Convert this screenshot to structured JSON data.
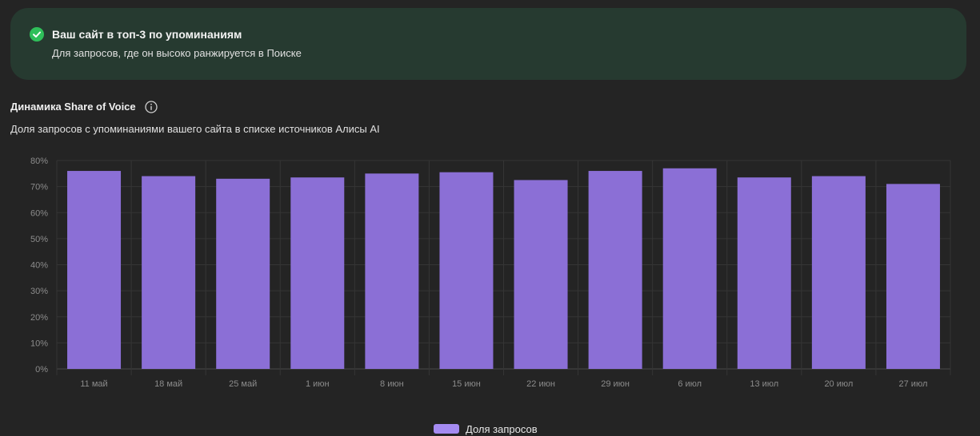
{
  "banner": {
    "title": "Ваш сайт в топ-3 по упоминаниям",
    "subtitle": "Для запросов, где он высоко ранжируется в Поиске",
    "icon": "check-circle-icon",
    "accent_color": "#2fbf5a"
  },
  "section": {
    "title": "Динамика Share of Voice",
    "subtitle": "Доля запросов с упоминаниями вашего сайта в списке источников Алисы AI",
    "info_icon": "info-icon"
  },
  "chart_data": {
    "type": "bar",
    "categories": [
      "11 май",
      "18 май",
      "25 май",
      "1 июн",
      "8 июн",
      "15 июн",
      "22 июн",
      "29 июн",
      "6 июл",
      "13 июл",
      "20 июл",
      "27 июл"
    ],
    "series": [
      {
        "name": "Доля запросов",
        "values": [
          76,
          74,
          73,
          73.5,
          75,
          75.5,
          72.5,
          76,
          77,
          73.5,
          74,
          71
        ],
        "color": "#8b6fd6"
      }
    ],
    "yticks": [
      "0%",
      "10%",
      "20%",
      "30%",
      "40%",
      "50%",
      "60%",
      "70%",
      "80%"
    ],
    "ylim": [
      0,
      80
    ],
    "grid": true,
    "legend_position": "bottom-center"
  },
  "legend": {
    "label": "Доля запросов",
    "swatch_color": "#a58bf2"
  }
}
